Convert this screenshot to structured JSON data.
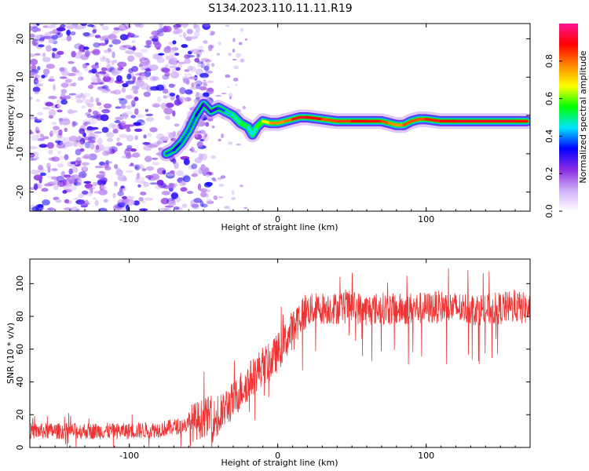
{
  "title": "S134.2023.110.11.11.R19",
  "chart_data": [
    {
      "type": "heatmap",
      "title": "",
      "xlabel": "Height of straight line (km)",
      "ylabel": "Frequency (Hz)",
      "xlim": [
        -167,
        170
      ],
      "ylim": [
        -25,
        24
      ],
      "x_ticks": [
        -100,
        0,
        100
      ],
      "y_ticks": [
        -20,
        -10,
        0,
        10,
        20
      ],
      "colorbar": {
        "label": "Normalized spectral amplitude",
        "range": [
          0.0,
          1.0
        ],
        "ticks": [
          0.0,
          0.2,
          0.4,
          0.6,
          0.8
        ],
        "colors": [
          "#ffffff",
          "#cfaff6",
          "#8a2be2",
          "#0000ff",
          "#00e5ff",
          "#00ff00",
          "#ffff00",
          "#ff8800",
          "#ff0000",
          "#ff1493"
        ]
      },
      "signal_trace": {
        "x": [
          -75,
          -70,
          -65,
          -60,
          -55,
          -50,
          -45,
          -40,
          -35,
          -30,
          -25,
          -20,
          -17,
          -14,
          -10,
          -5,
          0,
          5,
          10,
          15,
          20,
          30,
          40,
          50,
          60,
          70,
          75,
          80,
          85,
          90,
          95,
          100,
          110,
          120,
          130,
          140,
          150,
          160,
          168
        ],
        "y": [
          -10,
          -9,
          -7,
          -4,
          0,
          3,
          1,
          2,
          1,
          0,
          -2,
          -3,
          -5,
          -3,
          -1.5,
          -2,
          -2,
          -1.5,
          -1,
          -0.5,
          -0.5,
          -1,
          -1.5,
          -1.5,
          -1.5,
          -1.5,
          -2,
          -2.5,
          -2.5,
          -1.5,
          -1,
          -1,
          -1.5,
          -1.5,
          -1.5,
          -1.5,
          -1.5,
          -1.5,
          -1.5
        ],
        "amplitude": [
          0.45,
          0.3,
          0.35,
          0.4,
          0.35,
          0.3,
          0.25,
          0.35,
          0.4,
          0.45,
          0.5,
          0.55,
          0.35,
          0.55,
          0.6,
          0.75,
          0.8,
          0.75,
          0.85,
          0.9,
          0.95,
          0.85,
          0.8,
          0.88,
          0.9,
          0.85,
          0.8,
          0.75,
          0.8,
          0.85,
          0.8,
          0.85,
          0.88,
          0.9,
          0.92,
          0.9,
          0.92,
          0.9,
          0.85
        ]
      },
      "noise_region": {
        "x_range": [
          -167,
          -45
        ],
        "y_range": [
          -25,
          24
        ],
        "amplitude_range": [
          0.0,
          0.25
        ]
      }
    },
    {
      "type": "line",
      "title": "",
      "xlabel": "Height of straight line (km)",
      "ylabel": "SNR (10 * v/v)",
      "xlim": [
        -167,
        170
      ],
      "ylim": [
        0,
        115
      ],
      "x_ticks": [
        -100,
        0,
        100
      ],
      "y_ticks": [
        0,
        20,
        40,
        60,
        80,
        100
      ],
      "color": "#ee3333",
      "series": [
        {
          "x": [
            -167,
            -140,
            -120,
            -100,
            -80,
            -60,
            -50,
            -45,
            -40,
            -35,
            -30,
            -25,
            -20,
            -15,
            -10,
            -5,
            0,
            5,
            10,
            15,
            20,
            30,
            40,
            50,
            60,
            70,
            80,
            90,
            100,
            110,
            120,
            130,
            140,
            150,
            160,
            170
          ],
          "y": [
            10,
            10,
            10,
            10,
            11,
            14,
            18,
            20,
            15,
            25,
            28,
            35,
            40,
            45,
            50,
            52,
            58,
            65,
            72,
            80,
            84,
            85,
            85,
            86,
            84,
            85,
            84,
            85,
            85,
            86,
            85,
            85,
            84,
            85,
            86,
            84
          ]
        }
      ]
    }
  ]
}
